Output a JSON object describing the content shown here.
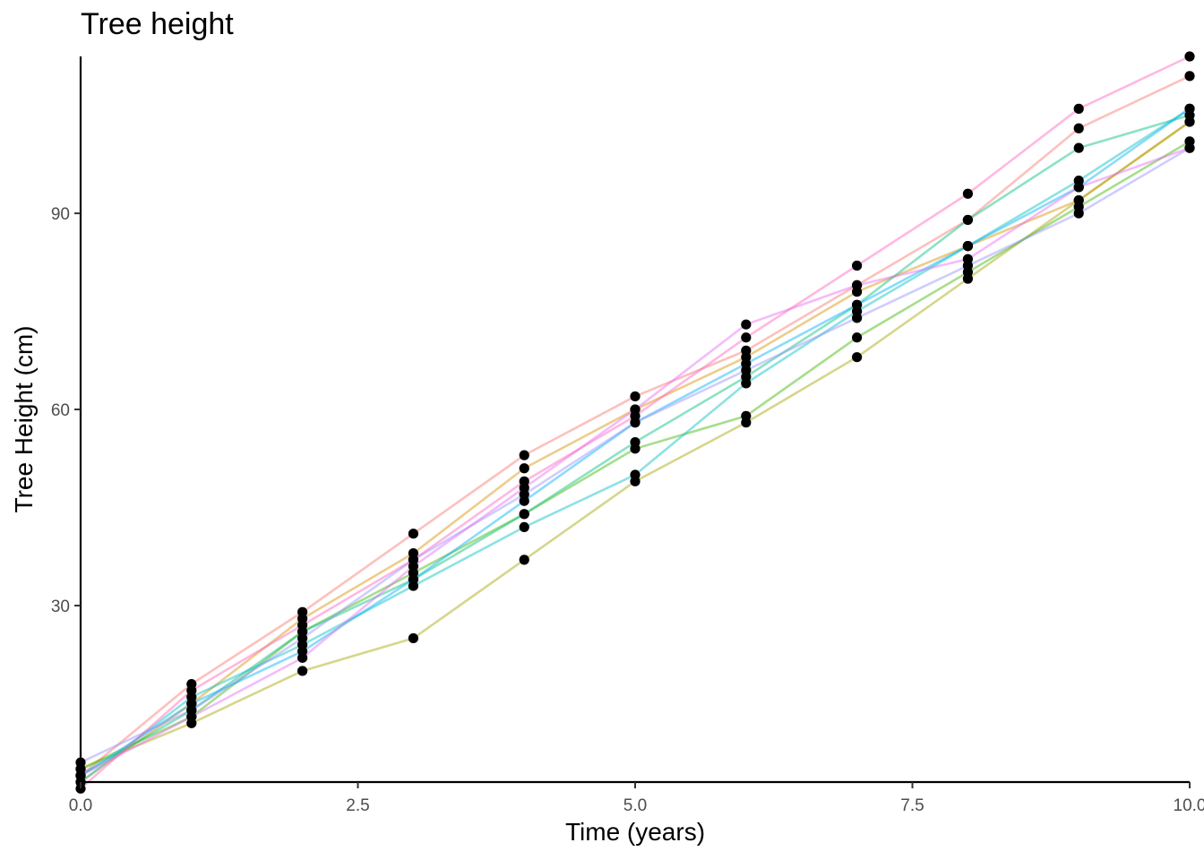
{
  "chart_data": {
    "type": "line",
    "title": "Tree height",
    "xlabel": "Time (years)",
    "ylabel": "Tree Height (cm)",
    "xlim": [
      0,
      10
    ],
    "ylim": [
      3,
      114
    ],
    "xticks": [
      0,
      2.5,
      5,
      7.5,
      10
    ],
    "xtick_labels": [
      "0.0",
      "2.5",
      "5.0",
      "7.5",
      "10.0"
    ],
    "yticks": [
      30,
      60,
      90
    ],
    "ytick_labels": [
      "30",
      "60",
      "90"
    ],
    "grid": false,
    "legend": "none",
    "line_opacity": 0.45,
    "point_color": "#000000",
    "x": [
      0,
      1,
      2,
      3,
      4,
      5,
      6,
      7,
      8,
      9,
      10
    ],
    "series": [
      {
        "color": "#F8766D",
        "values": [
          4,
          18,
          29,
          41,
          53,
          62,
          69,
          79,
          89,
          103,
          111
        ]
      },
      {
        "color": "#D89000",
        "values": [
          3,
          15,
          28,
          38,
          51,
          60,
          68,
          78,
          85,
          92,
          104
        ]
      },
      {
        "color": "#A3A500",
        "values": [
          5,
          12,
          20,
          25,
          37,
          49,
          58,
          68,
          80,
          92,
          104
        ]
      },
      {
        "color": "#39B600",
        "values": [
          5,
          13,
          26,
          35,
          44,
          54,
          59,
          71,
          81,
          91,
          101
        ]
      },
      {
        "color": "#00BF7D",
        "values": [
          4,
          14,
          26,
          34,
          44,
          55,
          65,
          76,
          89,
          100,
          105
        ]
      },
      {
        "color": "#00BFC4",
        "values": [
          3,
          16,
          24,
          33,
          42,
          50,
          64,
          75,
          85,
          95,
          106
        ]
      },
      {
        "color": "#00B0F6",
        "values": [
          4,
          15,
          23,
          34,
          46,
          58,
          67,
          76,
          85,
          94,
          106
        ]
      },
      {
        "color": "#9590FF",
        "values": [
          6,
          14,
          25,
          37,
          47,
          58,
          66,
          74,
          82,
          90,
          100
        ]
      },
      {
        "color": "#E76BF3",
        "values": [
          4,
          13,
          22,
          36,
          48,
          60,
          73,
          79,
          83,
          94,
          100
        ]
      },
      {
        "color": "#FF62BC",
        "values": [
          2,
          17,
          27,
          37,
          49,
          59,
          71,
          82,
          93,
          106,
          114
        ]
      }
    ]
  }
}
